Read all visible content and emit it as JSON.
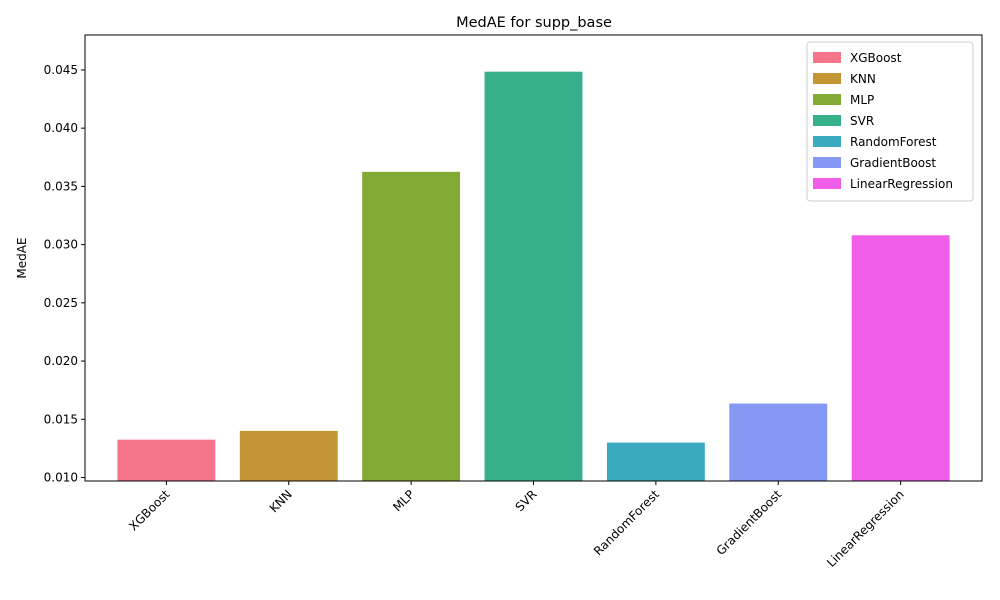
{
  "chart_data": {
    "type": "bar",
    "title": "MedAE for supp_base",
    "xlabel": "",
    "ylabel": "MedAE",
    "categories": [
      "XGBoost",
      "KNN",
      "MLP",
      "SVR",
      "RandomForest",
      "GradientBoost",
      "LinearRegression"
    ],
    "values": [
      0.01325,
      0.014,
      0.03625,
      0.04485,
      0.013,
      0.01635,
      0.0308
    ],
    "colors": [
      "#f5758a",
      "#c49535",
      "#83aa35",
      "#36b08a",
      "#39aac0",
      "#8498f4",
      "#f05ee9"
    ],
    "ylim": [
      0.0097,
      0.048
    ],
    "yticks": [
      0.01,
      0.015,
      0.02,
      0.025,
      0.03,
      0.035,
      0.04,
      0.045
    ],
    "ytick_labels": [
      "0.010",
      "0.015",
      "0.020",
      "0.025",
      "0.030",
      "0.035",
      "0.040",
      "0.045"
    ],
    "grid": false,
    "legend": {
      "position": "top-right",
      "entries": [
        "XGBoost",
        "KNN",
        "MLP",
        "SVR",
        "RandomForest",
        "GradientBoost",
        "LinearRegression"
      ]
    }
  }
}
